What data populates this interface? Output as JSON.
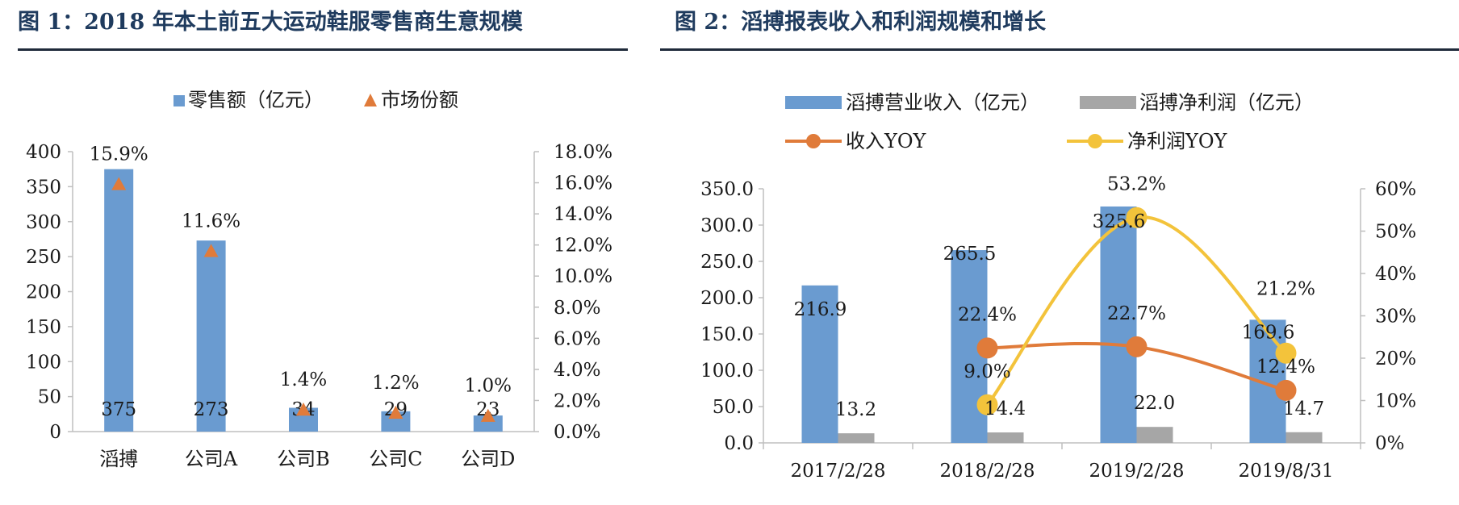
{
  "figure1": {
    "title": "图 1：2018 年本土前五大运动鞋服零售商生意规模"
  },
  "figure2": {
    "title": "图 2：滔搏报表收入和利润规模和增长"
  },
  "chart_data": [
    {
      "type": "bar",
      "categories": [
        "滔搏",
        "公司A",
        "公司B",
        "公司C",
        "公司D"
      ],
      "series": [
        {
          "name": "零售额（亿元）",
          "type": "bar",
          "axis": "left",
          "values": [
            375,
            273,
            34,
            29,
            23
          ],
          "labels": [
            "375",
            "273",
            "34",
            "29",
            "23"
          ],
          "color": "#6a9bd0"
        },
        {
          "name": "市场份额",
          "type": "scatter",
          "marker": "triangle",
          "axis": "right",
          "values": [
            15.9,
            11.6,
            1.4,
            1.2,
            1.0
          ],
          "labels": [
            "15.9%",
            "11.6%",
            "1.4%",
            "1.2%",
            "1.0%"
          ],
          "color": "#e07b3a"
        }
      ],
      "y_left": {
        "min": 0,
        "max": 400,
        "ticks": [
          "0",
          "50",
          "100",
          "150",
          "200",
          "250",
          "300",
          "350",
          "400"
        ]
      },
      "y_right": {
        "min": 0,
        "max": 18,
        "ticks": [
          "0.0%",
          "2.0%",
          "4.0%",
          "6.0%",
          "8.0%",
          "10.0%",
          "12.0%",
          "14.0%",
          "16.0%",
          "18.0%"
        ]
      },
      "legend": "top",
      "grid": false
    },
    {
      "type": "bar",
      "categories": [
        "2017/2/28",
        "2018/2/28",
        "2019/2/28",
        "2019/8/31"
      ],
      "series": [
        {
          "name": "滔搏营业收入（亿元）",
          "type": "bar",
          "axis": "left",
          "values": [
            216.9,
            265.5,
            325.6,
            169.6
          ],
          "labels": [
            "216.9",
            "265.5",
            "325.6",
            "169.6"
          ],
          "color": "#6a9bd0"
        },
        {
          "name": "滔搏净利润（亿元）",
          "type": "bar",
          "axis": "left",
          "values": [
            13.2,
            14.4,
            22.0,
            14.7
          ],
          "labels": [
            "13.2",
            "14.4",
            "22.0",
            "14.7"
          ],
          "color": "#a6a6a6"
        },
        {
          "name": "收入YOY",
          "type": "line",
          "axis": "right",
          "values": [
            null,
            22.4,
            22.7,
            12.4
          ],
          "labels": [
            "",
            "22.4%",
            "22.7%",
            "12.4%"
          ],
          "color": "#e07b3a"
        },
        {
          "name": "净利润YOY",
          "type": "line",
          "axis": "right",
          "values": [
            null,
            9.0,
            53.2,
            21.2
          ],
          "labels": [
            "",
            "9.0%",
            "53.2%",
            "21.2%"
          ],
          "color": "#f3c33b"
        }
      ],
      "y_left": {
        "min": 0,
        "max": 350,
        "ticks": [
          "0.0",
          "50.0",
          "100.0",
          "150.0",
          "200.0",
          "250.0",
          "300.0",
          "350.0"
        ]
      },
      "y_right": {
        "min": 0,
        "max": 60,
        "ticks": [
          "0%",
          "10%",
          "20%",
          "30%",
          "40%",
          "50%",
          "60%"
        ]
      },
      "legend": "top",
      "grid": false
    }
  ]
}
